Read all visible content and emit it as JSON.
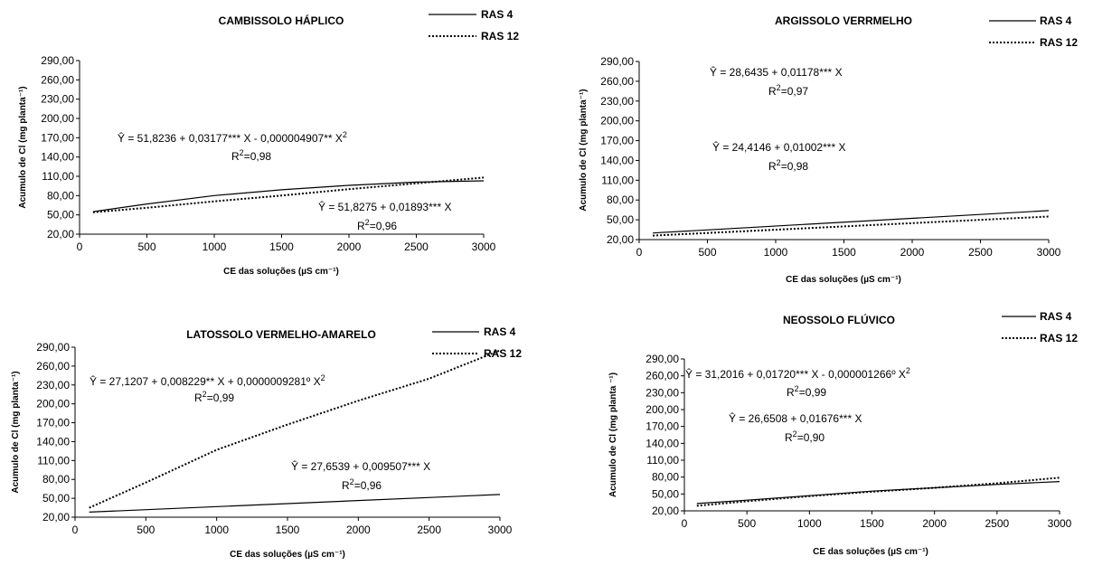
{
  "chart_data": [
    {
      "type": "line",
      "title": "CAMBISSOLO HÁPLICO",
      "xlabel": "CE das soluções (µS cm⁻¹)",
      "ylabel": "Acumulo de Cl (mg planta⁻¹)",
      "xlim": [
        0,
        3000
      ],
      "ylim": [
        20,
        290
      ],
      "xticks": [
        "0",
        "500",
        "1000",
        "1500",
        "2000",
        "2500",
        "3000"
      ],
      "yticks": [
        "20,00",
        "50,00",
        "80,00",
        "110,00",
        "140,00",
        "170,00",
        "200,00",
        "230,00",
        "260,00",
        "290,00"
      ],
      "legend": "top-right",
      "series": [
        {
          "name": "RAS 4",
          "style": "solid",
          "x": [
            100,
            500,
            1000,
            1500,
            2000,
            2500,
            3000
          ],
          "y": [
            55,
            67,
            80,
            89,
            96,
            101,
            103
          ]
        },
        {
          "name": "RAS 12",
          "style": "dotted",
          "x": [
            100,
            500,
            1000,
            1500,
            2000,
            2500,
            3000
          ],
          "y": [
            54,
            61,
            71,
            80,
            90,
            99,
            108
          ]
        }
      ],
      "annotations": [
        {
          "pre": "Ŷ =    51,8236 + 0,03177*** X - 0,000004907** X",
          "sup": "2",
          "r2": "0,98"
        },
        {
          "pre": "Ŷ =    51,8275 + 0,01893*** X",
          "sup": "",
          "r2": "0,96"
        }
      ]
    },
    {
      "type": "line",
      "title": "ARGISSOLO VERRMELHO",
      "xlabel": "CE das soluções (µS cm⁻¹)",
      "ylabel": "Acumulo de Cl (mg planta⁻¹)",
      "xlim": [
        0,
        3000
      ],
      "ylim": [
        20,
        290
      ],
      "xticks": [
        "0",
        "500",
        "1000",
        "1500",
        "2000",
        "2500",
        "3000"
      ],
      "yticks": [
        "20,00",
        "50,00",
        "80,00",
        "110,00",
        "140,00",
        "170,00",
        "200,00",
        "230,00",
        "260,00",
        "290,00"
      ],
      "legend": "top-right",
      "series": [
        {
          "name": "RAS 4",
          "style": "solid",
          "x": [
            100,
            3000
          ],
          "y": [
            30,
            64
          ]
        },
        {
          "name": "RAS 12",
          "style": "dotted",
          "x": [
            100,
            3000
          ],
          "y": [
            26,
            55
          ]
        }
      ],
      "annotations": [
        {
          "pre": "Ŷ =    28,6435 + 0,01178*** X",
          "sup": "",
          "r2": "0,97"
        },
        {
          "pre": "Ŷ = 24,4146 + 0,01002*** X",
          "sup": "",
          "r2": "0,98"
        }
      ]
    },
    {
      "type": "line",
      "title": "LATOSSOLO VERMELHO-AMARELO",
      "xlabel": "CE das soluções (µS cm⁻¹)",
      "ylabel": "Acumulo de Cl (mg planta⁻¹)",
      "xlim": [
        0,
        3000
      ],
      "ylim": [
        20,
        290
      ],
      "xticks": [
        "0",
        "500",
        "1000",
        "1500",
        "2000",
        "2500",
        "3000"
      ],
      "yticks": [
        "20,00",
        "50,00",
        "80,00",
        "110,00",
        "140,00",
        "170,00",
        "200,00",
        "230,00",
        "260,00",
        "290,00"
      ],
      "legend": "top-right",
      "series": [
        {
          "name": "RAS 4",
          "style": "solid",
          "x": [
            100,
            3000
          ],
          "y": [
            28,
            56
          ]
        },
        {
          "name": "RAS 12",
          "style": "dotted",
          "x": [
            100,
            500,
            1000,
            1500,
            2000,
            2500,
            3000
          ],
          "y": [
            35,
            75,
            127,
            167,
            205,
            240,
            285
          ]
        }
      ],
      "annotations": [
        {
          "pre": "Ŷ = 27,1207 + 0,008229** X + 0,0000009281º X",
          "sup": "2",
          "r2": "0,99"
        },
        {
          "pre": "Ŷ =   27,6539 + 0,009507*** X",
          "sup": "",
          "r2": "0,96"
        }
      ]
    },
    {
      "type": "line",
      "title": "NEOSSOLO FLÚVICO",
      "xlabel": "CE das soluções (µS cm⁻¹)",
      "ylabel": "Acumulo de Cl (mg planta ⁻¹)",
      "xlim": [
        0,
        3000
      ],
      "ylim": [
        20,
        290
      ],
      "xticks": [
        "0",
        "500",
        "1000",
        "1500",
        "2000",
        "2500",
        "3000"
      ],
      "yticks": [
        "20,00",
        "50,00",
        "80,00",
        "110,00",
        "140,00",
        "170,00",
        "200,00",
        "230,00",
        "260,00",
        "290,00"
      ],
      "legend": "top-right",
      "series": [
        {
          "name": "RAS 4",
          "style": "solid",
          "x": [
            100,
            500,
            1000,
            1500,
            2000,
            2500,
            3000
          ],
          "y": [
            33,
            39,
            47,
            55,
            61,
            67,
            72
          ]
        },
        {
          "name": "RAS 12",
          "style": "dotted",
          "x": [
            100,
            500,
            1000,
            1500,
            2000,
            2500,
            3000
          ],
          "y": [
            29,
            37,
            46,
            54,
            61,
            69,
            79
          ]
        }
      ],
      "annotations": [
        {
          "pre": "Ŷ = 31,2016 + 0,01720*** X - 0,000001266º X",
          "sup": "2",
          "r2": "0,99"
        },
        {
          "pre": "Ŷ = 26,6508 + 0,01676*** X",
          "sup": "",
          "r2": "0,90"
        }
      ]
    }
  ]
}
